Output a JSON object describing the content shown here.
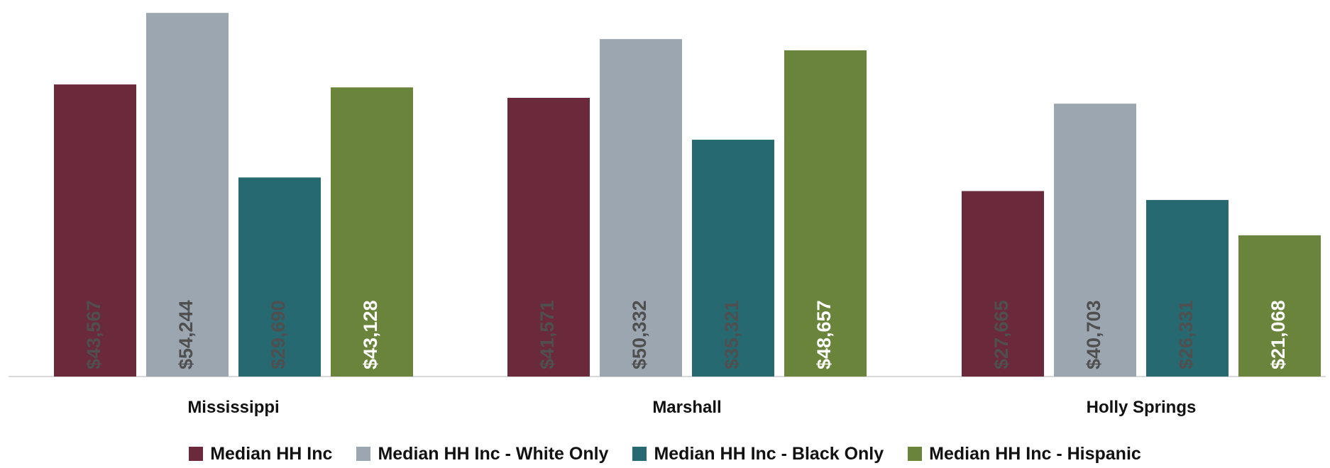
{
  "chart_data": {
    "type": "bar",
    "categories": [
      "Mississippi",
      "Marshall",
      "Holly Springs"
    ],
    "series": [
      {
        "name": "Median HH Inc",
        "color": "#6b2a3c",
        "label_color": "#4f4f4f",
        "values": [
          43567,
          41571,
          27665
        ],
        "labels": [
          "$43,567",
          "$41,571",
          "$27,665"
        ]
      },
      {
        "name": "Median HH Inc - White Only",
        "color": "#9ba6b0",
        "label_color": "#4f4f4f",
        "values": [
          54244,
          50332,
          40703
        ],
        "labels": [
          "$54,244",
          "$50,332",
          "$40,703"
        ]
      },
      {
        "name": "Median HH Inc - Black Only",
        "color": "#266970",
        "label_color": "#4f4f4f",
        "values": [
          29690,
          35321,
          26331
        ],
        "labels": [
          "$29,690",
          "$35,321",
          "$26,331"
        ]
      },
      {
        "name": "Median HH Inc - Hispanic",
        "color": "#6a843b",
        "label_color": "#ffffff",
        "values": [
          43128,
          48657,
          21068
        ],
        "labels": [
          "$43,128",
          "$48,657",
          "$21,068"
        ]
      }
    ],
    "ylim": [
      0,
      55000
    ],
    "grid": false,
    "legend": "bottom"
  }
}
